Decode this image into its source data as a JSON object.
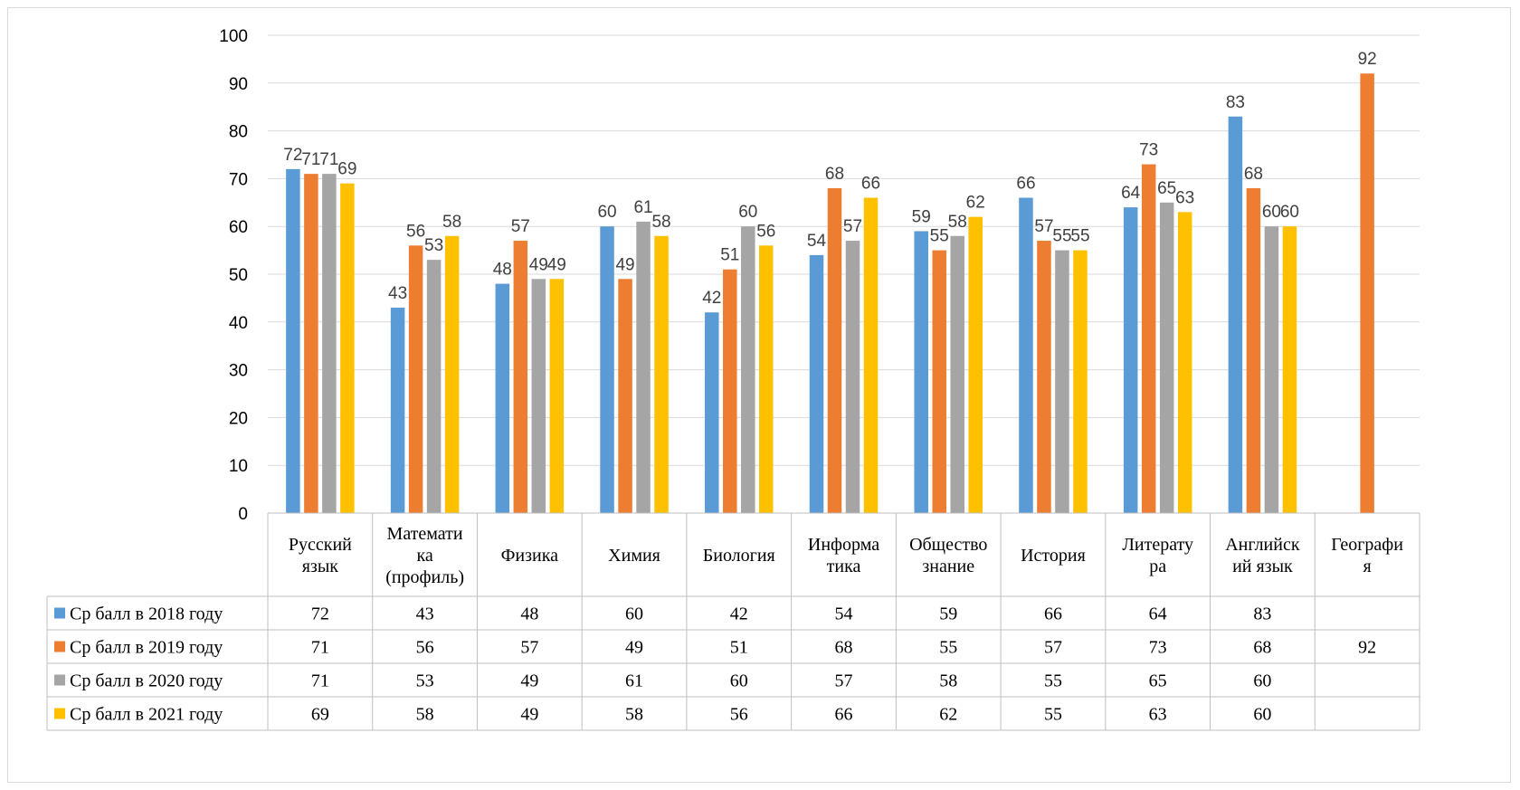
{
  "chart_data": {
    "type": "bar",
    "categories": [
      [
        "Русский",
        "язык"
      ],
      [
        "Математи",
        "ка",
        "(профиль)"
      ],
      [
        "Физика"
      ],
      [
        "Химия"
      ],
      [
        "Биология"
      ],
      [
        "Информа",
        "тика"
      ],
      [
        "Общество",
        "знание"
      ],
      [
        "История"
      ],
      [
        "Литерату",
        "ра"
      ],
      [
        "Английск",
        "ий язык"
      ],
      [
        "Географи",
        "я"
      ]
    ],
    "series": [
      {
        "name": "Ср балл в 2018 году",
        "color": "#5b9bd5",
        "values": [
          72,
          43,
          48,
          60,
          42,
          54,
          59,
          66,
          64,
          83,
          null
        ]
      },
      {
        "name": "Ср балл в 2019 году",
        "color": "#ed7d31",
        "values": [
          71,
          56,
          57,
          49,
          51,
          68,
          55,
          57,
          73,
          68,
          92
        ]
      },
      {
        "name": "Ср балл в 2020 году",
        "color": "#a5a5a5",
        "values": [
          71,
          53,
          49,
          61,
          60,
          57,
          58,
          55,
          65,
          60,
          null
        ]
      },
      {
        "name": "Ср балл в 2021 году",
        "color": "#ffc000",
        "values": [
          69,
          58,
          49,
          58,
          56,
          66,
          62,
          55,
          63,
          60,
          null
        ]
      }
    ],
    "ylim": [
      0,
      100
    ],
    "yticks": [
      0,
      10,
      20,
      30,
      40,
      50,
      60,
      70,
      80,
      90,
      100
    ],
    "grid": true,
    "legend": "data-table",
    "title": "",
    "xlabel": "",
    "ylabel": ""
  }
}
